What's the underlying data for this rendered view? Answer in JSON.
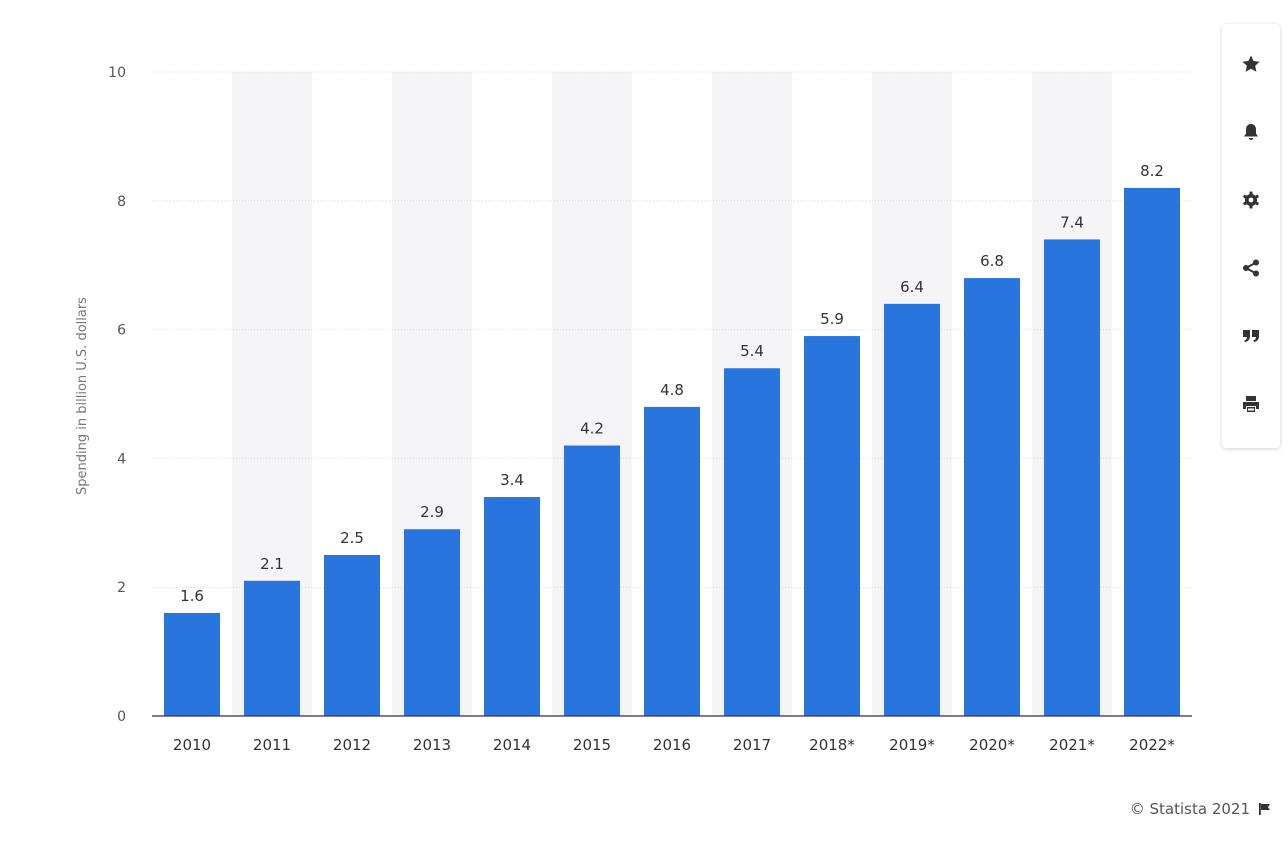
{
  "chart_data": {
    "type": "bar",
    "categories": [
      "2010",
      "2011",
      "2012",
      "2013",
      "2014",
      "2015",
      "2016",
      "2017",
      "2018*",
      "2019*",
      "2020*",
      "2021*",
      "2022*"
    ],
    "values": [
      1.6,
      2.1,
      2.5,
      2.9,
      3.4,
      4.2,
      4.8,
      5.4,
      5.9,
      6.4,
      6.8,
      7.4,
      8.2
    ],
    "value_labels": [
      "1.6",
      "2.1",
      "2.5",
      "2.9",
      "3.4",
      "4.2",
      "4.8",
      "5.4",
      "5.9",
      "6.4",
      "6.8",
      "7.4",
      "8.2"
    ],
    "ylabel": "Spending in billion U.S. dollars",
    "ylim": [
      0,
      10
    ],
    "yticks": [
      "0",
      "2",
      "4",
      "6",
      "8",
      "10"
    ],
    "grid": true,
    "bar_color": "#2876dd",
    "alt_band_color": "#f5f5f7"
  },
  "toolbar": {
    "icons": [
      "star-icon",
      "bell-icon",
      "gear-icon",
      "share-icon",
      "quote-icon",
      "print-icon"
    ]
  },
  "credit": {
    "text": "© Statista 2021"
  }
}
